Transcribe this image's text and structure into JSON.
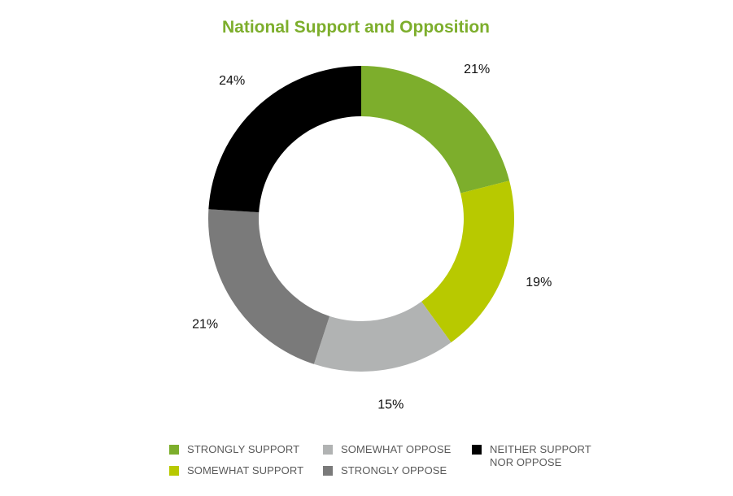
{
  "chart_data": {
    "type": "pie",
    "variant": "donut",
    "title": "National Support and Opposition",
    "slices": [
      {
        "label": "STRONGLY SUPPORT",
        "value": 21,
        "value_label": "21%",
        "color": "#7dae2c"
      },
      {
        "label": "SOMEWHAT SUPPORT",
        "value": 19,
        "value_label": "19%",
        "color": "#b8c900"
      },
      {
        "label": "SOMEWHAT OPPOSE",
        "value": 15,
        "value_label": "15%",
        "color": "#b1b3b3"
      },
      {
        "label": "STRONGLY OPPOSE",
        "value": 21,
        "value_label": "21%",
        "color": "#7a7a7a"
      },
      {
        "label": "NEITHER SUPPORT\nNOR OPPOSE",
        "value": 24,
        "value_label": "24%",
        "color": "#000000"
      }
    ],
    "legend_position": "bottom"
  },
  "colors": {
    "title": "#7dae2c",
    "legend_text": "#5a5a5a",
    "label_text": "#111111"
  }
}
